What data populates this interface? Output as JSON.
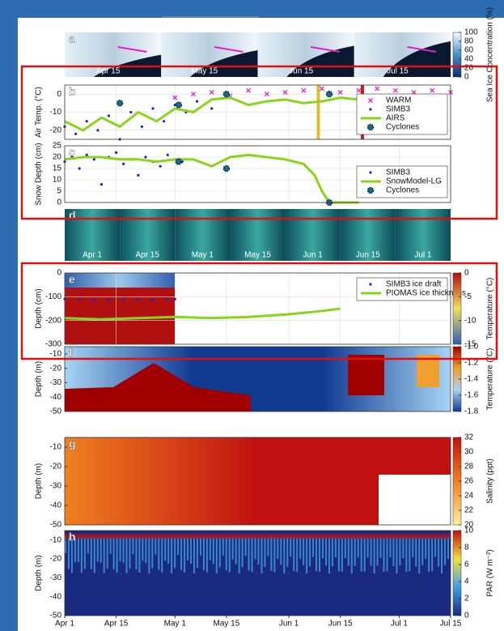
{
  "chart_data": [
    {
      "type": "image",
      "label": "a",
      "image_labels": [
        "Apr 15",
        "May 15",
        "Jun 15",
        "Jul 15"
      ],
      "colorbar": {
        "label": "Sea Ice Concentration (%)",
        "lim": [
          0,
          100
        ],
        "ticks": [
          100,
          80,
          60,
          40,
          20,
          0
        ],
        "colors": [
          "#08306b",
          "#4a90c8",
          "#f7fbff"
        ]
      }
    },
    {
      "type": "line",
      "label": "b",
      "ylabel": "Air Temp. (°C)",
      "ylim": [
        -25,
        5
      ],
      "yticks": [
        0,
        -10,
        -20
      ],
      "grid": true,
      "legend": "upper right",
      "series": [
        {
          "name": "WARM",
          "kind": "x",
          "color": "#e020d0",
          "x": [
            30,
            35,
            40,
            45,
            50,
            55,
            60,
            65,
            70,
            75,
            80,
            85,
            90,
            95,
            100,
            105
          ],
          "values": [
            -2,
            0,
            1,
            -1,
            2,
            0,
            1,
            2,
            3,
            1,
            2,
            3,
            2,
            1,
            2,
            1
          ]
        },
        {
          "name": "SIMB3",
          "kind": "dot",
          "color": "#2020d0",
          "x": [
            0,
            3,
            6,
            9,
            12,
            15,
            18,
            21,
            24,
            27,
            30,
            33,
            36,
            40,
            44
          ],
          "values": [
            -18,
            -22,
            -15,
            -20,
            -12,
            -25,
            -10,
            -18,
            -8,
            -15,
            -6,
            -10,
            -4,
            -8,
            -2
          ]
        },
        {
          "name": "AIRS",
          "kind": "line",
          "color": "#8bd41c",
          "x": [
            0,
            5,
            10,
            15,
            20,
            25,
            30,
            35,
            40,
            45,
            50,
            55,
            60,
            65,
            70,
            75,
            80,
            85,
            90,
            95
          ],
          "values": [
            -15,
            -20,
            -13,
            -18,
            -10,
            -15,
            -8,
            -10,
            -3,
            -2,
            -6,
            -4,
            -3,
            -5,
            -4,
            -2,
            -3,
            -1,
            -2,
            -1
          ]
        },
        {
          "name": "Cyclones",
          "kind": "star",
          "color": "#1a6b8a",
          "x": [
            15,
            31,
            44,
            72
          ],
          "values": [
            -5,
            -6,
            0,
            0
          ]
        }
      ],
      "markers": [
        {
          "x": 69,
          "color": "#e0c020"
        },
        {
          "x": 81,
          "color": "#c02020"
        }
      ]
    },
    {
      "type": "line",
      "label": "c",
      "ylabel": "Snow Depth (cm)",
      "ylim": [
        0,
        25
      ],
      "yticks": [
        0,
        5,
        10,
        15,
        20,
        25
      ],
      "grid": true,
      "legend": "upper right",
      "series": [
        {
          "name": "SIMB3",
          "kind": "dot",
          "color": "#2020d0",
          "x": [
            0,
            2,
            4,
            6,
            8,
            10,
            12,
            14,
            16,
            18,
            20,
            22,
            24,
            26,
            28,
            30,
            32
          ],
          "values": [
            18,
            20,
            15,
            21,
            19,
            8,
            20,
            22,
            17,
            19,
            12,
            20,
            18,
            16,
            21,
            19,
            18
          ]
        },
        {
          "name": "SnowModel-LG",
          "kind": "line",
          "color": "#8bd41c",
          "x": [
            0,
            5,
            10,
            15,
            20,
            25,
            30,
            35,
            40,
            45,
            50,
            55,
            60,
            65,
            68,
            70,
            72,
            75,
            80
          ],
          "values": [
            19,
            20,
            20,
            19,
            19,
            18,
            19,
            19,
            16,
            20,
            21,
            20,
            19,
            17,
            12,
            5,
            0,
            0,
            0
          ]
        },
        {
          "name": "Cyclones",
          "kind": "star",
          "color": "#1a6b8a",
          "x": [
            31,
            44,
            72
          ],
          "values": [
            18,
            15,
            0
          ]
        }
      ]
    },
    {
      "type": "image",
      "label": "d",
      "image_labels": [
        "Apr 1",
        "Apr 15",
        "May 1",
        "May 15",
        "Jun 1",
        "Jun 15",
        "Jul 1"
      ]
    },
    {
      "type": "line",
      "label": "e",
      "ylabel": "Depth (cm)",
      "ylim": [
        -300,
        0
      ],
      "yticks": [
        0,
        -100,
        -200,
        -300
      ],
      "grid": true,
      "legend": "upper right",
      "series": [
        {
          "name": "SIMB3 ice draft",
          "kind": "dot",
          "color": "#2020d0",
          "x": [
            0,
            4,
            8,
            12,
            16,
            20,
            24,
            28,
            30
          ],
          "values": [
            -110,
            -108,
            -112,
            -110,
            -107,
            -109,
            -111,
            -108,
            -110
          ]
        },
        {
          "name": "PIOMAS ice thickness",
          "kind": "line",
          "color": "#8bd41c",
          "x": [
            0,
            10,
            20,
            30,
            40,
            50,
            60,
            70,
            75
          ],
          "values": [
            -190,
            -195,
            -190,
            -185,
            -190,
            -185,
            -175,
            -160,
            -150
          ]
        }
      ],
      "colorbar": {
        "label": "Temperature (°C)",
        "lim": [
          -15,
          0
        ],
        "ticks": [
          0,
          -5,
          -10,
          -15
        ],
        "colors": [
          "#3060b0",
          "#f0e060",
          "#b01010"
        ]
      }
    },
    {
      "type": "heatmap",
      "label": "f",
      "ylabel": "Depth (m)",
      "ylim": [
        -50,
        -5
      ],
      "yticks": [
        -10,
        -20,
        -30,
        -40,
        -50
      ],
      "colorbar": {
        "label": "Temperature (°C)",
        "lim": [
          -1.8,
          -1.0
        ],
        "ticks": [
          {
            "value": -1,
            "label": "-1.0"
          },
          -1.2,
          -1.4,
          -1.6,
          -1.8
        ],
        "colors": [
          "#103a90",
          "#a8d4f4",
          "#f0a030",
          "#a00000"
        ]
      }
    },
    {
      "type": "heatmap",
      "label": "g",
      "ylabel": "Depth (m)",
      "ylim": [
        -50,
        -5
      ],
      "yticks": [
        -10,
        -20,
        -30,
        -40,
        -50
      ],
      "colorbar": {
        "label": "Salinity (ppt)",
        "lim": [
          20,
          32
        ],
        "ticks": [
          32,
          30,
          28,
          26,
          24,
          22,
          20
        ],
        "colors": [
          "#fff0a0",
          "#f08020",
          "#c01010"
        ]
      }
    },
    {
      "type": "heatmap",
      "label": "h",
      "ylabel": "Depth (m)",
      "ylim": [
        -50,
        -5
      ],
      "yticks": [
        -10,
        -20,
        -30,
        -40,
        -50
      ],
      "xlim": [
        0,
        105
      ],
      "xticks": [
        {
          "value": 0,
          "label": "Apr 1"
        },
        {
          "value": 14,
          "label": "Apr 15"
        },
        {
          "value": 30,
          "label": "May 1"
        },
        {
          "value": 44,
          "label": "May 15"
        },
        {
          "value": 61,
          "label": "Jun 1"
        },
        {
          "value": 75,
          "label": "Jun 15"
        },
        {
          "value": 91,
          "label": "Jul 1"
        },
        {
          "value": 105,
          "label": "Jul 15"
        }
      ],
      "colorbar": {
        "label": "PAR (W m⁻²)",
        "lim": [
          0,
          10
        ],
        "ticks": [
          10,
          8,
          6,
          4,
          2,
          0
        ],
        "colors": [
          "#1a2a80",
          "#40a0e0",
          "#f0e040",
          "#c01010"
        ]
      }
    }
  ]
}
